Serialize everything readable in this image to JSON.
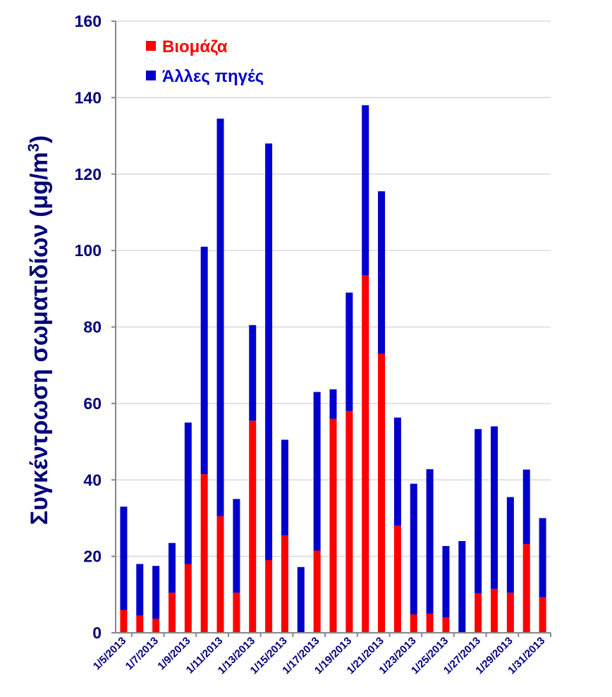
{
  "chart_data": {
    "type": "bar",
    "stacked": true,
    "ylabel": "Συγκέντρωση σωματιδίων (μg/m",
    "ylabel_superscript": "3",
    "ylabel_close": ")",
    "ylim": [
      0,
      160
    ],
    "yticks": [
      0,
      20,
      40,
      60,
      80,
      100,
      120,
      140,
      160
    ],
    "grid": true,
    "legend_position": "top-left",
    "x_tick_labels": [
      "1/5/2013",
      "1/7/2013",
      "1/9/2013",
      "1/11/2013",
      "1/13/2013",
      "1/15/2013",
      "1/17/2013",
      "1/19/2013",
      "1/21/2013",
      "1/23/2013",
      "1/25/2013",
      "1/27/2013",
      "1/29/2013",
      "1/31/2013"
    ],
    "categories": [
      "1/5/2013",
      "1/6/2013",
      "1/7/2013",
      "1/8/2013",
      "1/9/2013",
      "1/10/2013",
      "1/11/2013",
      "1/12/2013",
      "1/13/2013",
      "1/14/2013",
      "1/15/2013",
      "1/16/2013",
      "1/17/2013",
      "1/18/2013",
      "1/19/2013",
      "1/20/2013",
      "1/21/2013",
      "1/22/2013",
      "1/23/2013",
      "1/24/2013",
      "1/25/2013",
      "1/26/2013",
      "1/27/2013",
      "1/28/2013",
      "1/29/2013",
      "1/30/2013",
      "1/31/2013"
    ],
    "series": [
      {
        "name": "Βιομάζα",
        "color": "#ff0000",
        "values": [
          6,
          4.5,
          3.7,
          10.5,
          18,
          41.5,
          30.5,
          10.5,
          55.5,
          19,
          25.5,
          0,
          21.5,
          56,
          58,
          93.5,
          73,
          28,
          4.8,
          5,
          4,
          0,
          10.3,
          11.5,
          10.5,
          23.2,
          9.3
        ]
      },
      {
        "name": "Άλλες πηγές",
        "color": "#0000cc",
        "values": [
          27,
          13.5,
          13.8,
          13,
          37,
          59.5,
          104,
          24.5,
          25,
          109,
          25,
          17.2,
          41.5,
          7.7,
          31,
          44.5,
          42.5,
          28.3,
          34.2,
          37.8,
          18.7,
          24,
          43,
          42.5,
          25,
          19.5,
          20.7
        ]
      }
    ]
  }
}
